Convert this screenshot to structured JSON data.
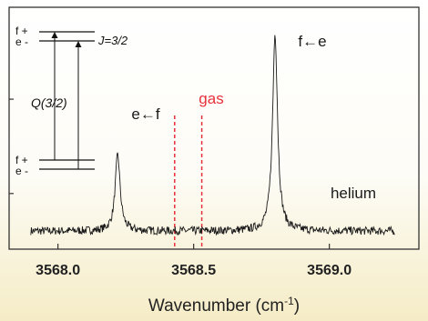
{
  "chart_data": {
    "type": "line",
    "title": "",
    "xlabel": "Wavenumber (cm",
    "xlabel_sup": "-1",
    "xlabel_close": ")",
    "ylabel": "",
    "xlim": [
      3567.82,
      3569.33
    ],
    "ylim": [
      0,
      1
    ],
    "grid": false,
    "xticks": [
      3568.0,
      3568.5,
      3569.0
    ],
    "xtick_labels": [
      "3568.0",
      "3568.5",
      "3569.0"
    ],
    "series": [
      {
        "baseline": 0.075,
        "noise": 0.017,
        "x_range": [
          3567.9,
          3569.24
        ],
        "peaks": [
          {
            "label": "e←f",
            "x": 3568.22,
            "height": 0.39
          },
          {
            "label": "f←e",
            "x": 3568.8,
            "height": 0.89
          }
        ]
      }
    ],
    "gas_lines": [
      3568.43,
      3568.53
    ],
    "annotations": {
      "gas": "gas",
      "helium": "helium",
      "peak_ef": "e←f",
      "peak_fe": "f←e"
    },
    "colors": {
      "trace": "#1a1a1a",
      "gas": "#e8303a",
      "axis": "#333333",
      "background_top": "#ffffff",
      "background_bottom": "#f5ecc6"
    },
    "inset": {
      "upper_levels": [
        "f +",
        "e -"
      ],
      "lower_levels": [
        "f +",
        "e -"
      ],
      "j_label": "J=3/2",
      "q_label": "Q(3/2)"
    }
  }
}
